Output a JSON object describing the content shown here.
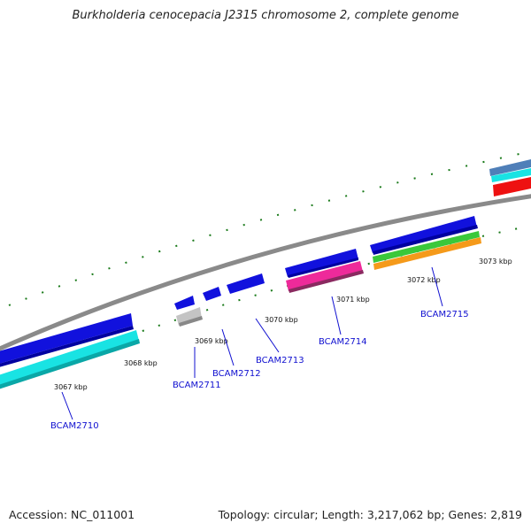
{
  "title": "Burkholderia cenocepacia J2315 chromosome 2, complete genome",
  "footer": {
    "accession": "Accession: NC_011001",
    "topology": "Topology: circular; Length: 3,217,062 bp; Genes: 2,819"
  },
  "tick_labels": [
    "3067 kbp",
    "3068 kbp",
    "3069 kbp",
    "3070 kbp",
    "3071 kbp",
    "3072 kbp",
    "3073 kbp"
  ],
  "gene_labels": [
    "BCAM2710",
    "BCAM2711",
    "BCAM2712",
    "BCAM2713",
    "BCAM2714",
    "BCAM2715"
  ],
  "colors": {
    "backbone": "#8a8a8a",
    "tick": "#1a7a1a",
    "cds": "#1111dd",
    "label": "#1010d0",
    "cyan": "#19e3e3",
    "gray_feature": "#c4c4c4",
    "magenta": "#ee2a9a",
    "green": "#3ac83a",
    "orange": "#f59a1a",
    "red": "#ee1111",
    "steelblue": "#4f7fb8"
  }
}
